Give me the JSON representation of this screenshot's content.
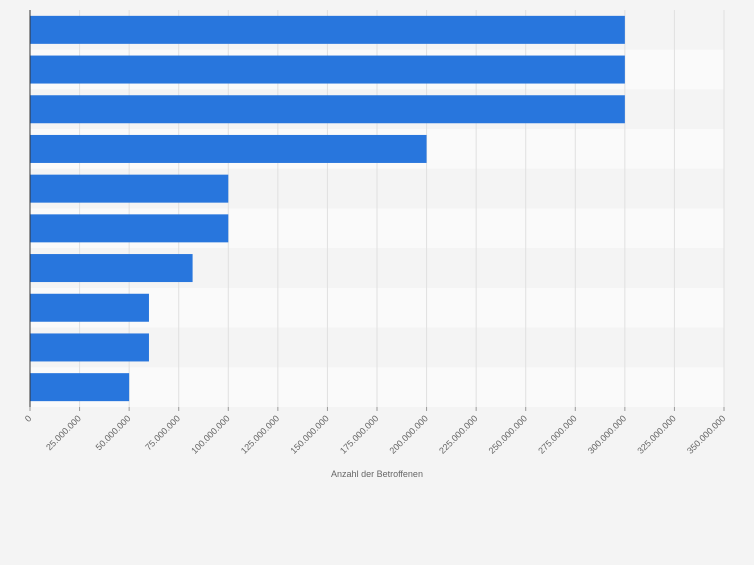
{
  "chart_data": {
    "type": "bar",
    "orientation": "horizontal",
    "x_label": "Anzahl der Betroffenen",
    "categories": [
      null,
      null,
      null,
      null,
      null,
      null,
      null,
      null,
      null,
      null
    ],
    "values": [
      300000000,
      300000000,
      300000000,
      200000000,
      100000000,
      100000000,
      82000000,
      60000000,
      60000000,
      50000000
    ],
    "color": "#2876dd",
    "xlim": [
      0,
      350000000
    ],
    "xticks": [
      0,
      {
        "value": 25000000,
        "label": "25.000.000"
      },
      {
        "value": 50000000,
        "label": "50.000.000"
      },
      {
        "value": 75000000,
        "label": "75.000.000"
      },
      {
        "value": 100000000,
        "label": "100.000.000"
      },
      {
        "value": 125000000,
        "label": "125.000.000"
      },
      {
        "value": 150000000,
        "label": "150.000.000"
      },
      {
        "value": 175000000,
        "label": "175.000.000"
      },
      {
        "value": 200000000,
        "label": "200.000.000"
      },
      {
        "value": 225000000,
        "label": "225.000.000"
      },
      {
        "value": 250000000,
        "label": "250.000.000"
      },
      {
        "value": 275000000,
        "label": "275.000.000"
      },
      {
        "value": 300000000,
        "label": "300.000.000"
      },
      {
        "value": 325000000,
        "label": "325.000.000"
      },
      {
        "value": 350000000,
        "label": "350.000.000"
      }
    ],
    "grid": true
  }
}
